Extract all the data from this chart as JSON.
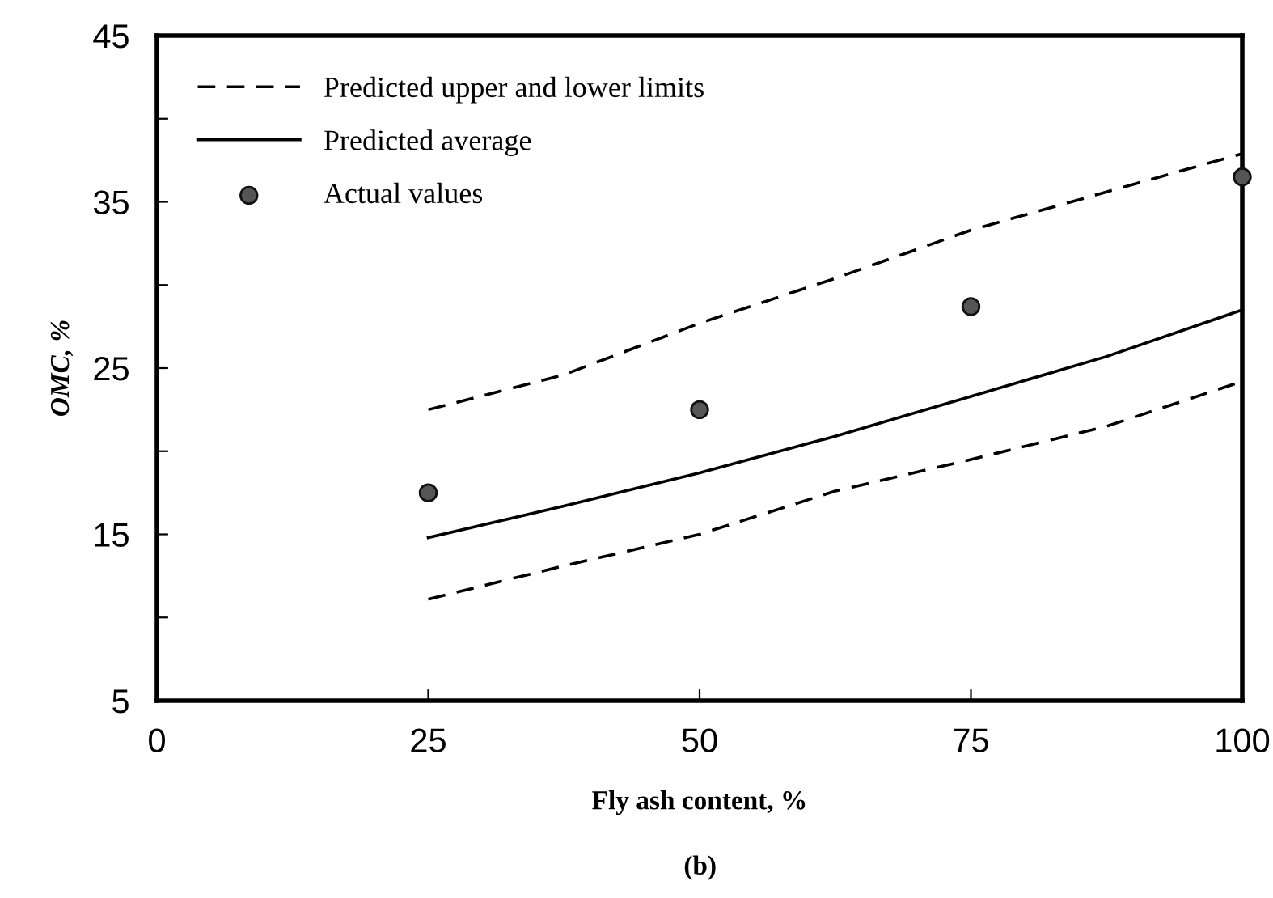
{
  "chart_data": {
    "type": "line",
    "xlabel": "Fly ash content, %",
    "ylabel": "OMC, %",
    "annotations": [
      "(b)"
    ],
    "xlim": [
      0,
      100
    ],
    "xticks": [
      0,
      25,
      50,
      75,
      100
    ],
    "ylim": [
      5,
      45
    ],
    "yticks": [
      5,
      {
        "value": 10,
        "label": null
      },
      15,
      {
        "value": 20,
        "label": null
      },
      25,
      {
        "value": 30,
        "label": null
      },
      35,
      {
        "value": 40,
        "label": null
      },
      45
    ],
    "grid": false,
    "legend": "top left",
    "series": [
      {
        "name": "Predicted upper and lower limits",
        "line_style": "dashed",
        "color": "#000000",
        "x": [
          25,
          37.5,
          50,
          62.5,
          75,
          87.5,
          100
        ],
        "values": [
          22.5,
          24.6,
          27.7,
          30.4,
          33.3,
          35.6,
          37.9
        ]
      },
      {
        "name": "Predicted average",
        "line_style": "solid",
        "color": "#000000",
        "x": [
          25,
          37.5,
          50,
          62.5,
          75,
          87.5,
          100
        ],
        "values": [
          14.8,
          16.7,
          18.7,
          20.9,
          23.3,
          25.7,
          28.5
        ]
      },
      {
        "line_style": "dashed",
        "color": "#000000",
        "x": [
          25,
          37.5,
          50,
          62.5,
          75,
          87.5,
          100
        ],
        "values": [
          11.1,
          13.1,
          15.0,
          17.6,
          19.5,
          21.5,
          24.2
        ]
      },
      {
        "name": "Actual values",
        "type": "scatter",
        "marker": "circle",
        "color": "#555555",
        "x": [
          25,
          50,
          75,
          100
        ],
        "values": [
          17.5,
          22.5,
          28.7,
          36.5
        ]
      }
    ]
  }
}
